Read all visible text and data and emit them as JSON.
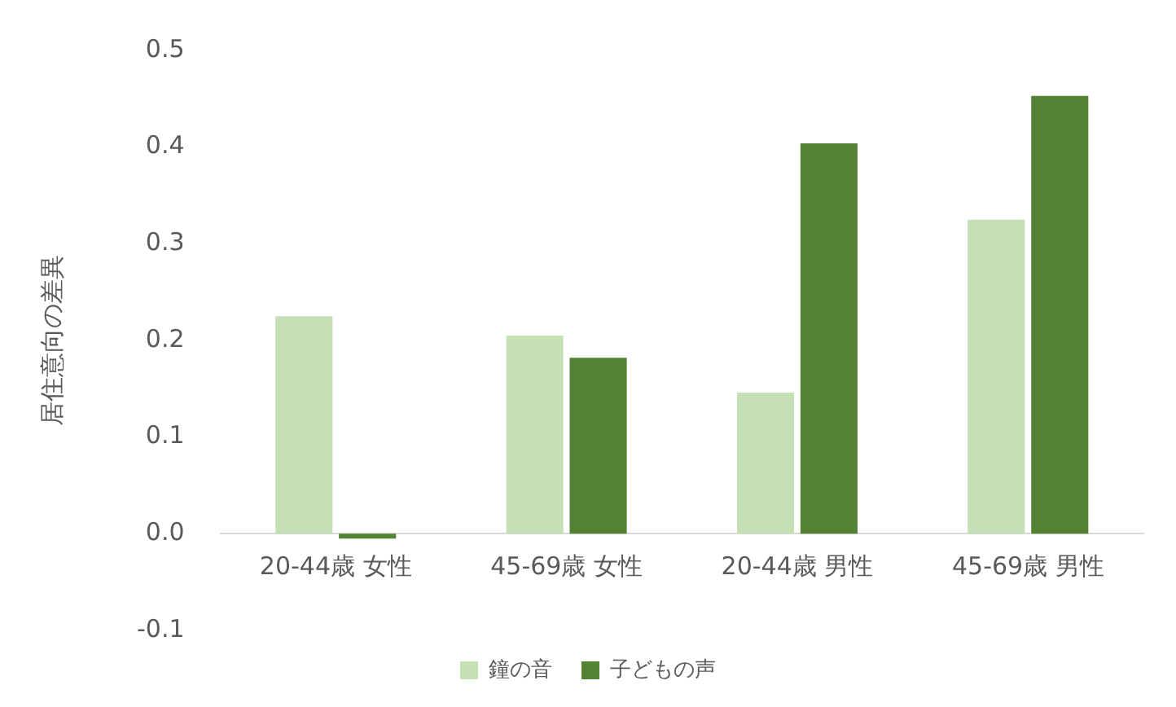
{
  "chart_data": {
    "type": "bar",
    "ylabel": "居住意向の差異",
    "categories": [
      "20-44歳 女性",
      "45-69歳 女性",
      "20-44歳 男性",
      "45-69歳 男性"
    ],
    "series": [
      {
        "name": "鐘の音",
        "color": "#c5e0b4",
        "values": [
          0.225,
          0.205,
          0.146,
          0.325
        ]
      },
      {
        "name": "子どもの声",
        "color": "#548235",
        "values": [
          -0.005,
          0.182,
          0.404,
          0.453
        ]
      }
    ],
    "ylim": [
      -0.1,
      0.5
    ],
    "yticks": [
      -0.1,
      {
        "value": 0,
        "label": "0.0"
      },
      0.1,
      0.2,
      0.3,
      0.4,
      0.5
    ],
    "grid": false,
    "legend": "bottom"
  }
}
